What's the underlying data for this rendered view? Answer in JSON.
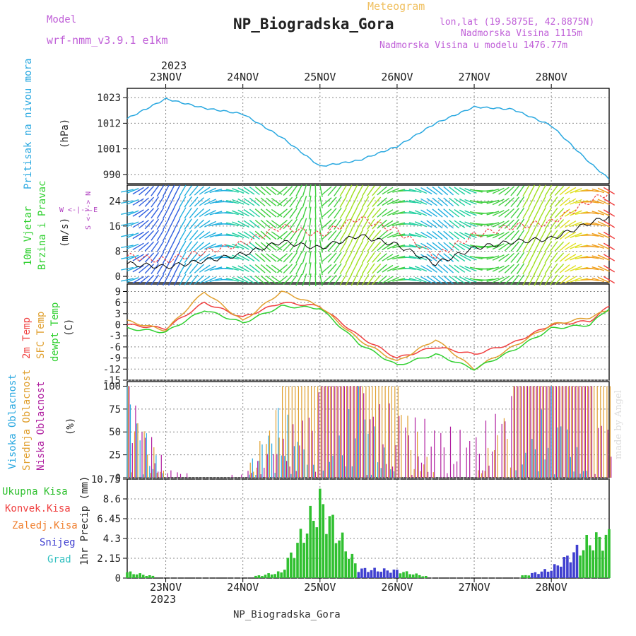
{
  "header": {
    "model_label": "Model",
    "model_name": "wrf-nmm_v3.9.1 e1km",
    "product": "Meteogram",
    "station": "NP_Biogradska_Gora",
    "coords": "lon,lat (19.5875E, 42.8875N)",
    "elevation": "Nadmorska Visina 1115m",
    "model_elevation": "Nadmorska Visina u modelu 1476.77m",
    "footer_station": "NP_Biogradska_Gora",
    "watermark": "made by Angel",
    "year_top": "2023",
    "year_bottom": "2023"
  },
  "colors": {
    "pressure": "#29a8e0",
    "temp2m": "#f04040",
    "sfc": "#e0a030",
    "dewpt": "#30d030",
    "high_cloud": "#29a8e0",
    "mid_cloud": "#e0a030",
    "low_cloud": "#b020a0",
    "total_precip": "#30c030",
    "conv_precip": "#f04040",
    "freezing": "#f08030",
    "snow": "#4040d0",
    "hail": "#30c0c0",
    "grid": "#888888"
  },
  "panel_labels": {
    "pressure": {
      "title": "Pritisak na nivou mora",
      "unit": "(hPa)"
    },
    "wind": {
      "title1": "10m Vjetar",
      "title2": "Brzina i Pravac",
      "unit": "(m/s)",
      "compass": "W <-|-> E",
      "compass_ns": "S <-|-> N"
    },
    "temp": {
      "t1": "2m Temp",
      "t2": "SFC Temp",
      "t3": "dewpt Temp",
      "unit": "(C)"
    },
    "cloud": {
      "c1": "Visoka Oblacnost",
      "c2": "Srednja Oblacnost",
      "c3": "Niska Oblacnost",
      "unit": "(%)"
    },
    "precip": {
      "ylabel": "1hr Precip (mm)",
      "legend": [
        "Ukupna Kisa",
        "Konvek.Kisa",
        "Zaledj.Kisa",
        "Snijeg",
        "Grad"
      ]
    }
  },
  "chart_data": [
    {
      "type": "line",
      "name": "pressure",
      "x_days": [
        "23NOV",
        "24NOV",
        "25NOV",
        "26NOV",
        "27NOV",
        "28NOV"
      ],
      "x_hours": [
        0,
        12,
        24,
        36,
        48,
        60,
        72,
        84,
        96,
        108,
        120,
        132,
        144,
        150
      ],
      "values": [
        1014,
        1022.5,
        1018.5,
        1016,
        1006,
        993.5,
        996,
        1002,
        1012,
        1019,
        1018,
        1011,
        995,
        988
      ],
      "yticks": [
        990,
        1001,
        1012,
        1023
      ],
      "ylim": [
        986,
        1027
      ]
    },
    {
      "type": "line",
      "name": "wind",
      "x_hours": [
        0,
        12,
        24,
        36,
        48,
        60,
        72,
        84,
        96,
        108,
        120,
        132,
        144,
        150
      ],
      "values": [
        4,
        3,
        5,
        7,
        11,
        9,
        13,
        10,
        4,
        9,
        11,
        12,
        17,
        19
      ],
      "yticks": [
        0,
        8,
        16,
        24
      ],
      "ylim": [
        -2,
        29
      ]
    },
    {
      "type": "line",
      "name": "temperature",
      "x_hours": [
        0,
        12,
        24,
        36,
        48,
        60,
        72,
        84,
        96,
        108,
        120,
        132,
        144,
        150
      ],
      "series": [
        {
          "name": "2m Temp",
          "values": [
            0,
            -1,
            6,
            2,
            6,
            5,
            -3,
            -9,
            -6,
            -8,
            -5,
            0,
            1,
            5
          ]
        },
        {
          "name": "SFC Temp",
          "values": [
            1,
            -1.5,
            9,
            1,
            9,
            5,
            -4,
            -10,
            -4,
            -12,
            -6,
            0,
            2,
            4
          ]
        },
        {
          "name": "dewpt Temp",
          "values": [
            -1,
            -2,
            4,
            0.5,
            5,
            4.5,
            -5,
            -11,
            -8,
            -12,
            -7,
            -1,
            0,
            4.5
          ]
        }
      ],
      "yticks": [
        -15,
        -12,
        -9,
        -6,
        -3,
        0,
        3,
        6,
        9
      ],
      "ylim": [
        -15,
        11
      ]
    },
    {
      "type": "bar",
      "name": "cloud",
      "x_hours": [
        0,
        12,
        24,
        36,
        48,
        60,
        72,
        84,
        96,
        108,
        120,
        132,
        144,
        150
      ],
      "series": [
        {
          "name": "Visoka Oblacnost",
          "values": [
            100,
            0,
            0,
            0,
            85,
            0,
            100,
            0,
            0,
            0,
            0,
            100,
            0,
            0
          ]
        },
        {
          "name": "Srednja Oblacnost",
          "values": [
            100,
            0,
            0,
            0,
            100,
            100,
            100,
            100,
            0,
            0,
            100,
            100,
            100,
            100
          ]
        },
        {
          "name": "Niska Oblacnost",
          "values": [
            100,
            10,
            0,
            5,
            45,
            100,
            100,
            75,
            60,
            50,
            100,
            100,
            100,
            50
          ]
        }
      ],
      "yticks": [
        0,
        25,
        50,
        75,
        100
      ],
      "ylim": [
        0,
        105
      ]
    },
    {
      "type": "bar",
      "name": "precip",
      "x_hours": [
        0,
        12,
        24,
        36,
        48,
        60,
        72,
        84,
        96,
        108,
        120,
        132,
        144,
        150
      ],
      "values": [
        0.8,
        0,
        0,
        0,
        0.8,
        10.2,
        1.2,
        1.0,
        0,
        0,
        0,
        1.2,
        5.0,
        5.6
      ],
      "yticks": [
        0,
        2.15,
        4.3,
        6.45,
        8.6,
        10.75
      ],
      "ylim": [
        0,
        10.75
      ]
    }
  ]
}
